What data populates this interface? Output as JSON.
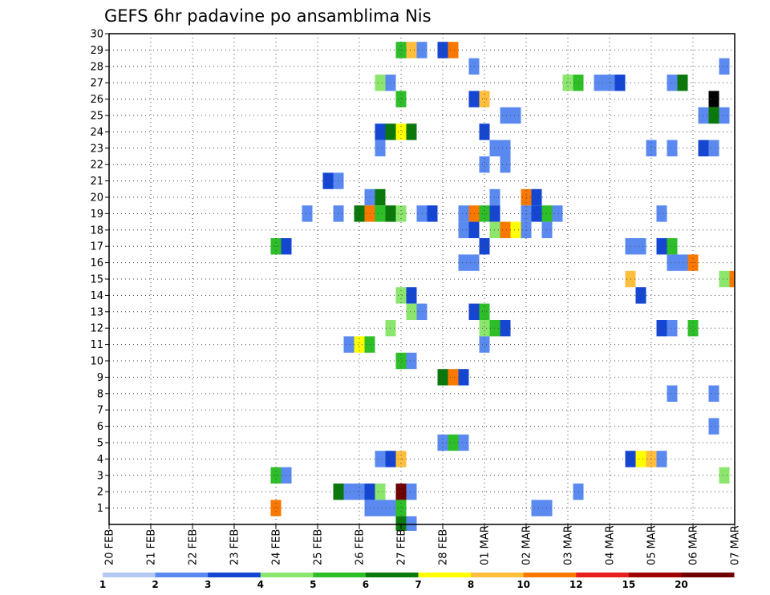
{
  "chart_data": {
    "type": "heatmap",
    "title": "GEFS 6hr padavine po ansamblima Nis",
    "xlabel": "",
    "ylabel": "",
    "x_ticks": [
      "20 FEB",
      "21 FEB",
      "22 FEB",
      "23 FEB",
      "24 FEB",
      "25 FEB",
      "26 FEB",
      "27 FEB",
      "28 FEB",
      "01 MAR",
      "02 MAR",
      "03 MAR",
      "04 MAR",
      "05 MAR",
      "06 MAR",
      "07 MAR"
    ],
    "y_ticks": [
      "1",
      "2",
      "3",
      "4",
      "5",
      "6",
      "7",
      "8",
      "9",
      "10",
      "11",
      "12",
      "13",
      "14",
      "15",
      "16",
      "17",
      "18",
      "19",
      "20",
      "21",
      "22",
      "23",
      "24",
      "25",
      "26",
      "27",
      "28",
      "29",
      "30"
    ],
    "xlim": [
      0,
      60
    ],
    "ylim": [
      0,
      30
    ],
    "x_unit": "6-hour steps from 20 FEB 00Z",
    "y_unit": "ensemble member",
    "grid": true,
    "colorbar": {
      "levels": [
        "1",
        "2",
        "3",
        "4",
        "5",
        "6",
        "7",
        "8",
        "10",
        "12",
        "15",
        "20"
      ],
      "colors": [
        "#b4c8f5",
        "#5a8af0",
        "#1446d2",
        "#8ce66e",
        "#2dbe28",
        "#0a780a",
        "#ffff00",
        "#ffbe3c",
        "#fa7800",
        "#e61e1e",
        "#a00000",
        "#6e0000"
      ]
    },
    "cells": [
      [
        28,
        29,
        4
      ],
      [
        29,
        29,
        7
      ],
      [
        30,
        29,
        1
      ],
      [
        32,
        29,
        2
      ],
      [
        33,
        29,
        8
      ],
      [
        35,
        28,
        1
      ],
      [
        59,
        28,
        1
      ],
      [
        26,
        27,
        3
      ],
      [
        27,
        27,
        1
      ],
      [
        44,
        27,
        3
      ],
      [
        45,
        27,
        4
      ],
      [
        47,
        27,
        1
      ],
      [
        48,
        27,
        1
      ],
      [
        49,
        27,
        2
      ],
      [
        54,
        27,
        1
      ],
      [
        55,
        27,
        5
      ],
      [
        28,
        26,
        4
      ],
      [
        35,
        26,
        2
      ],
      [
        36,
        26,
        7
      ],
      [
        58,
        26,
        12
      ],
      [
        38,
        25,
        1
      ],
      [
        39,
        25,
        1
      ],
      [
        57,
        25,
        1
      ],
      [
        58,
        25,
        5
      ],
      [
        59,
        25,
        1
      ],
      [
        26,
        24,
        2
      ],
      [
        27,
        24,
        5
      ],
      [
        28,
        24,
        6
      ],
      [
        29,
        24,
        5
      ],
      [
        36,
        24,
        2
      ],
      [
        26,
        23,
        1
      ],
      [
        37,
        23,
        1
      ],
      [
        38,
        23,
        1
      ],
      [
        52,
        23,
        1
      ],
      [
        54,
        23,
        1
      ],
      [
        57,
        23,
        2
      ],
      [
        58,
        23,
        1
      ],
      [
        36,
        22,
        1
      ],
      [
        38,
        22,
        1
      ],
      [
        21,
        21,
        2
      ],
      [
        22,
        21,
        1
      ],
      [
        25,
        20,
        1
      ],
      [
        26,
        20,
        5
      ],
      [
        37,
        20,
        1
      ],
      [
        40,
        20,
        8
      ],
      [
        41,
        20,
        2
      ],
      [
        19,
        19,
        1
      ],
      [
        22,
        19,
        1
      ],
      [
        24,
        19,
        5
      ],
      [
        25,
        19,
        8
      ],
      [
        26,
        19,
        4
      ],
      [
        27,
        19,
        5
      ],
      [
        28,
        19,
        3
      ],
      [
        30,
        19,
        1
      ],
      [
        31,
        19,
        2
      ],
      [
        34,
        19,
        1
      ],
      [
        35,
        19,
        8
      ],
      [
        36,
        19,
        4
      ],
      [
        37,
        19,
        2
      ],
      [
        40,
        19,
        1
      ],
      [
        41,
        19,
        2
      ],
      [
        42,
        19,
        4
      ],
      [
        43,
        19,
        1
      ],
      [
        53,
        19,
        1
      ],
      [
        34,
        18,
        1
      ],
      [
        35,
        18,
        2
      ],
      [
        37,
        18,
        3
      ],
      [
        38,
        18,
        8
      ],
      [
        39,
        18,
        6
      ],
      [
        40,
        18,
        1
      ],
      [
        42,
        18,
        1
      ],
      [
        16,
        17,
        4
      ],
      [
        17,
        17,
        2
      ],
      [
        36,
        17,
        2
      ],
      [
        50,
        17,
        1
      ],
      [
        51,
        17,
        1
      ],
      [
        53,
        17,
        2
      ],
      [
        54,
        17,
        4
      ],
      [
        34,
        16,
        1
      ],
      [
        35,
        16,
        1
      ],
      [
        54,
        16,
        1
      ],
      [
        55,
        16,
        1
      ],
      [
        56,
        16,
        8
      ],
      [
        50,
        15,
        7
      ],
      [
        51,
        14,
        2
      ],
      [
        59,
        15,
        3
      ],
      [
        60,
        15,
        8
      ],
      [
        28,
        14,
        3
      ],
      [
        29,
        14,
        2
      ],
      [
        29,
        13,
        3
      ],
      [
        30,
        13,
        1
      ],
      [
        35,
        13,
        2
      ],
      [
        36,
        13,
        4
      ],
      [
        27,
        12,
        3
      ],
      [
        36,
        12,
        3
      ],
      [
        37,
        12,
        4
      ],
      [
        38,
        12,
        2
      ],
      [
        53,
        12,
        2
      ],
      [
        54,
        12,
        1
      ],
      [
        56,
        12,
        4
      ],
      [
        23,
        11,
        1
      ],
      [
        24,
        11,
        6
      ],
      [
        25,
        11,
        4
      ],
      [
        36,
        11,
        1
      ],
      [
        28,
        10,
        4
      ],
      [
        29,
        10,
        1
      ],
      [
        32,
        9,
        5
      ],
      [
        33,
        9,
        8
      ],
      [
        34,
        9,
        2
      ],
      [
        54,
        8,
        1
      ],
      [
        58,
        8,
        1
      ],
      [
        58,
        6,
        1
      ],
      [
        32,
        5,
        1
      ],
      [
        33,
        5,
        4
      ],
      [
        34,
        5,
        1
      ],
      [
        26,
        4,
        1
      ],
      [
        27,
        4,
        2
      ],
      [
        28,
        4,
        7
      ],
      [
        50,
        4,
        2
      ],
      [
        51,
        4,
        6
      ],
      [
        52,
        4,
        7
      ],
      [
        53,
        4,
        1
      ],
      [
        16,
        3,
        4
      ],
      [
        17,
        3,
        1
      ],
      [
        59,
        3,
        3
      ],
      [
        22,
        2,
        5
      ],
      [
        23,
        2,
        1
      ],
      [
        24,
        2,
        1
      ],
      [
        25,
        2,
        2
      ],
      [
        26,
        2,
        3
      ],
      [
        28,
        2,
        11
      ],
      [
        29,
        2,
        1
      ],
      [
        45,
        2,
        1
      ],
      [
        16,
        1,
        8
      ],
      [
        25,
        1,
        1
      ],
      [
        26,
        1,
        1
      ],
      [
        27,
        1,
        1
      ],
      [
        28,
        1,
        4
      ],
      [
        41,
        1,
        1
      ],
      [
        42,
        1,
        1
      ],
      [
        28,
        0,
        5
      ],
      [
        29,
        0,
        1
      ]
    ]
  }
}
